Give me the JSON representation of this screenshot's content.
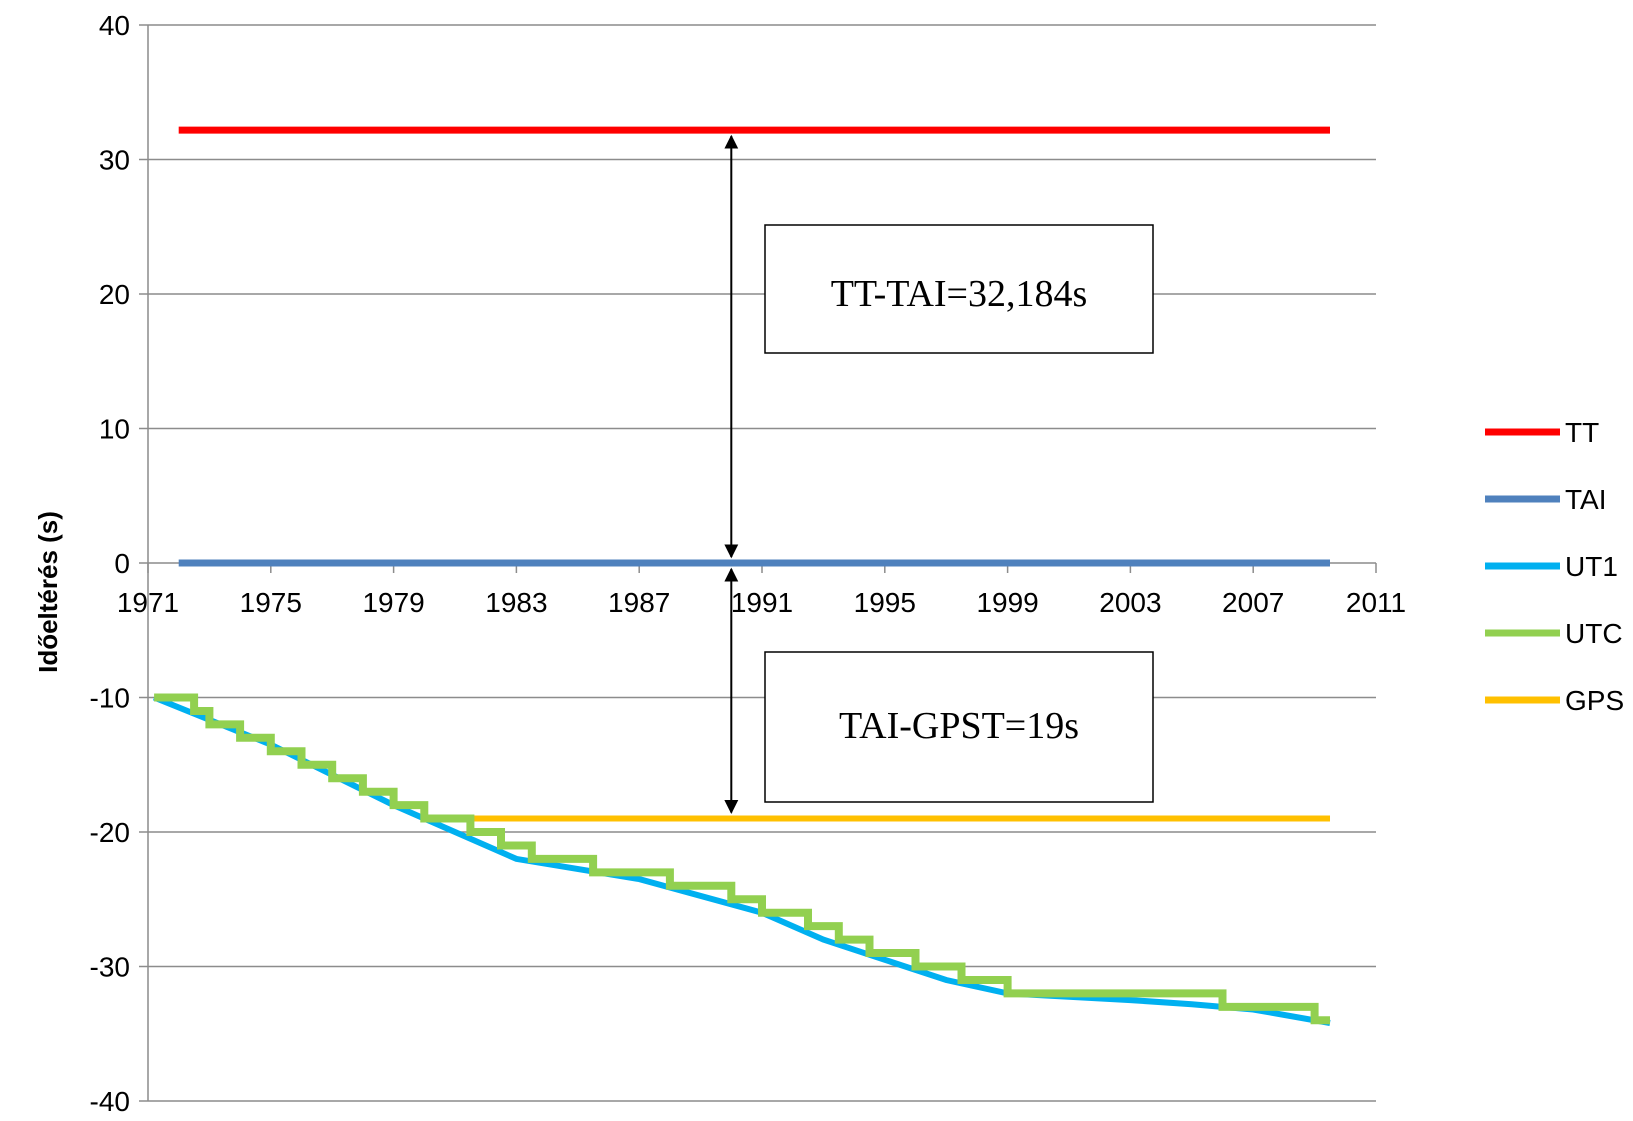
{
  "chart_data": {
    "type": "line",
    "title": "",
    "xlabel": "",
    "ylabel": "Időeltérés (s)",
    "xlim": [
      1971,
      2011
    ],
    "ylim": [
      -40,
      40
    ],
    "xticks": [
      "1971",
      "1975",
      "1979",
      "1983",
      "1987",
      "1991",
      "1995",
      "1999",
      "2003",
      "2007",
      "2011"
    ],
    "yticks": [
      "40",
      "30",
      "20",
      "10",
      "0",
      "-10",
      "-20",
      "-30",
      "-40"
    ],
    "grid": "horizontal",
    "legend_position": "right",
    "series": [
      {
        "name": "TT",
        "color": "#ff0000",
        "points": [
          [
            1972,
            32.184
          ],
          [
            2009.5,
            32.184
          ]
        ]
      },
      {
        "name": "TAI",
        "color": "#4f81bd",
        "points": [
          [
            1972,
            0
          ],
          [
            2009.5,
            0
          ]
        ]
      },
      {
        "name": "UT1",
        "color": "#00b0f0",
        "points": [
          [
            1971.2,
            -10
          ],
          [
            1975,
            -13.5
          ],
          [
            1979,
            -18
          ],
          [
            1983,
            -22
          ],
          [
            1987,
            -23.5
          ],
          [
            1991,
            -26
          ],
          [
            1993,
            -28
          ],
          [
            1995,
            -29.5
          ],
          [
            1997,
            -31
          ],
          [
            1999,
            -32
          ],
          [
            2003,
            -32.5
          ],
          [
            2005,
            -32.8
          ],
          [
            2007,
            -33.2
          ],
          [
            2009.5,
            -34.2
          ]
        ]
      },
      {
        "name": "UTC",
        "color": "#92d050",
        "step": true,
        "points": [
          [
            1971.2,
            -10
          ],
          [
            1972.5,
            -11
          ],
          [
            1973,
            -12
          ],
          [
            1974,
            -13
          ],
          [
            1975,
            -14
          ],
          [
            1976,
            -15
          ],
          [
            1977,
            -16
          ],
          [
            1978,
            -17
          ],
          [
            1979,
            -18
          ],
          [
            1980,
            -19
          ],
          [
            1981.5,
            -20
          ],
          [
            1982.5,
            -21
          ],
          [
            1983.5,
            -22
          ],
          [
            1985.5,
            -23
          ],
          [
            1988,
            -24
          ],
          [
            1990,
            -25
          ],
          [
            1991,
            -26
          ],
          [
            1992.5,
            -27
          ],
          [
            1993.5,
            -28
          ],
          [
            1994.5,
            -29
          ],
          [
            1996,
            -30
          ],
          [
            1997.5,
            -31
          ],
          [
            1999,
            -32
          ],
          [
            2006,
            -33
          ],
          [
            2009,
            -34
          ],
          [
            2009.5,
            -34
          ]
        ]
      },
      {
        "name": "GPS",
        "color": "#ffc000",
        "points": [
          [
            1980,
            -19
          ],
          [
            2009.5,
            -19
          ]
        ]
      }
    ],
    "annotations": [
      {
        "text": "TT-TAI=32,184s",
        "x_from": 1990,
        "y_from": 32.184,
        "x_to": 1990,
        "y_to": 0
      },
      {
        "text": "TAI-GPST=19s",
        "x_from": 1990,
        "y_from": 0,
        "x_to": 1990,
        "y_to": -19
      }
    ]
  }
}
